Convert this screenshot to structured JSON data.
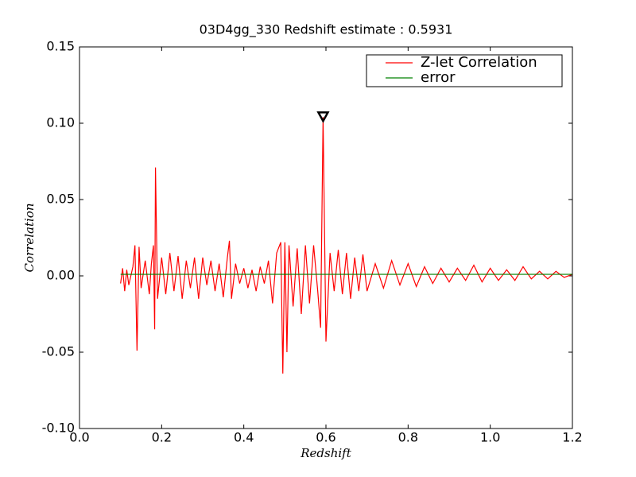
{
  "chart_data": {
    "type": "line",
    "title": "03D4gg_330 Redshift estimate : 0.5931",
    "xlabel": "Redshift",
    "ylabel": "Correlation",
    "xlim": [
      0,
      1.2
    ],
    "ylim": [
      -0.1,
      0.15
    ],
    "xticks": [
      {
        "value": 0,
        "label": "0.0"
      },
      0.2,
      0.4,
      0.6,
      0.8,
      {
        "value": 1,
        "label": "1.0"
      },
      1.2
    ],
    "yticks": [
      {
        "value": -0.1,
        "label": "-0.10"
      },
      -0.05,
      {
        "value": 0,
        "label": "0.00"
      },
      0.05,
      {
        "value": 0.1,
        "label": "0.10"
      },
      0.15
    ],
    "legend": "upper right",
    "series": [
      {
        "name": "Z-let Correlation",
        "color": "#ff0000",
        "x": [
          0.1,
          0.105,
          0.11,
          0.115,
          0.12,
          0.13,
          0.135,
          0.14,
          0.145,
          0.15,
          0.16,
          0.17,
          0.175,
          0.18,
          0.183,
          0.185,
          0.19,
          0.2,
          0.21,
          0.22,
          0.23,
          0.24,
          0.25,
          0.26,
          0.27,
          0.28,
          0.29,
          0.3,
          0.31,
          0.32,
          0.33,
          0.34,
          0.35,
          0.36,
          0.365,
          0.37,
          0.38,
          0.39,
          0.4,
          0.41,
          0.42,
          0.43,
          0.44,
          0.45,
          0.46,
          0.47,
          0.48,
          0.49,
          0.495,
          0.5,
          0.505,
          0.51,
          0.52,
          0.53,
          0.54,
          0.55,
          0.56,
          0.57,
          0.58,
          0.587,
          0.593,
          0.6,
          0.61,
          0.62,
          0.63,
          0.64,
          0.65,
          0.66,
          0.67,
          0.68,
          0.69,
          0.7,
          0.72,
          0.74,
          0.76,
          0.78,
          0.8,
          0.82,
          0.84,
          0.86,
          0.88,
          0.9,
          0.92,
          0.94,
          0.96,
          0.98,
          1.0,
          1.02,
          1.04,
          1.06,
          1.08,
          1.1,
          1.12,
          1.14,
          1.16,
          1.18,
          1.2
        ],
        "values": [
          -0.005,
          0.005,
          -0.01,
          0.004,
          -0.006,
          0.006,
          0.02,
          -0.049,
          0.019,
          -0.008,
          0.01,
          -0.012,
          0.008,
          0.02,
          -0.035,
          0.071,
          -0.015,
          0.012,
          -0.012,
          0.015,
          -0.01,
          0.013,
          -0.015,
          0.01,
          -0.008,
          0.012,
          -0.015,
          0.012,
          -0.006,
          0.01,
          -0.01,
          0.008,
          -0.014,
          0.012,
          0.023,
          -0.015,
          0.008,
          -0.005,
          0.005,
          -0.008,
          0.004,
          -0.01,
          0.006,
          -0.005,
          0.01,
          -0.018,
          0.015,
          0.022,
          -0.064,
          0.022,
          -0.05,
          0.02,
          -0.02,
          0.018,
          -0.025,
          0.02,
          -0.018,
          0.02,
          -0.01,
          -0.034,
          0.104,
          -0.043,
          0.015,
          -0.01,
          0.017,
          -0.012,
          0.015,
          -0.015,
          0.012,
          -0.01,
          0.014,
          -0.01,
          0.008,
          -0.008,
          0.01,
          -0.006,
          0.008,
          -0.007,
          0.006,
          -0.005,
          0.005,
          -0.004,
          0.005,
          -0.003,
          0.007,
          -0.004,
          0.005,
          -0.003,
          0.004,
          -0.003,
          0.006,
          -0.002,
          0.003,
          -0.002,
          0.003,
          -0.001,
          0.001
        ]
      },
      {
        "name": "error",
        "color": "#008000",
        "x": [
          0.1,
          1.2
        ],
        "values": [
          0.001,
          0.001
        ]
      }
    ],
    "marker": {
      "x": 0.5931,
      "y": 0.104
    }
  }
}
